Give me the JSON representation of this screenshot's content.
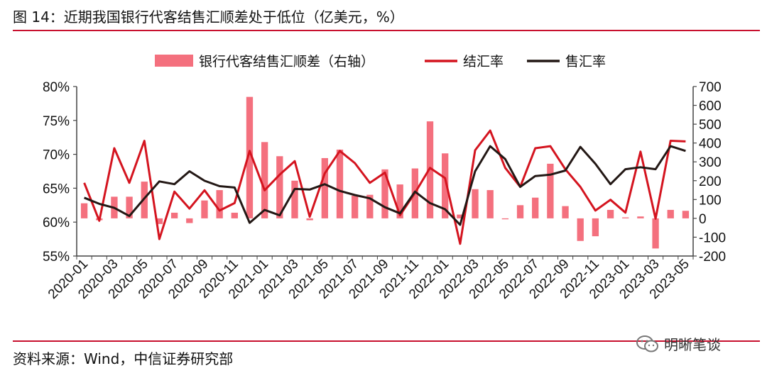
{
  "title": "图 14：近期我国银行代客结售汇顺差处于低位（亿美元，%）",
  "source": "资料来源：Wind，中信证券研究部",
  "watermark": "明晰笔谈",
  "chart_data": {
    "type": "bar+line",
    "categories": [
      "2020-01",
      "2020-02",
      "2020-03",
      "2020-04",
      "2020-05",
      "2020-06",
      "2020-07",
      "2020-08",
      "2020-09",
      "2020-10",
      "2020-11",
      "2020-12",
      "2021-01",
      "2021-02",
      "2021-03",
      "2021-04",
      "2021-05",
      "2021-06",
      "2021-07",
      "2021-08",
      "2021-09",
      "2021-10",
      "2021-11",
      "2021-12",
      "2022-01",
      "2022-02",
      "2022-03",
      "2022-04",
      "2022-05",
      "2022-06",
      "2022-07",
      "2022-08",
      "2022-09",
      "2022-10",
      "2022-11",
      "2022-12",
      "2023-01",
      "2023-02",
      "2023-03",
      "2023-04",
      "2023-05"
    ],
    "x_tick_labels": [
      "2020-01",
      "2020-03",
      "2020-05",
      "2020-07",
      "2020-09",
      "2020-11",
      "2021-01",
      "2021-03",
      "2021-05",
      "2021-07",
      "2021-09",
      "2021-11",
      "2022-01",
      "2022-03",
      "2022-05",
      "2022-07",
      "2022-09",
      "2022-11",
      "2023-01",
      "2023-03",
      "2023-05"
    ],
    "series": [
      {
        "name": "银行代客结售汇顺差（右轴）",
        "kind": "bar",
        "axis": "right",
        "color": "#f4707e",
        "values": [
          80,
          -10,
          115,
          115,
          195,
          -30,
          30,
          -25,
          95,
          150,
          30,
          645,
          405,
          330,
          200,
          -10,
          320,
          365,
          120,
          125,
          260,
          180,
          265,
          515,
          345,
          20,
          155,
          150,
          -5,
          70,
          110,
          290,
          65,
          -120,
          -95,
          45,
          5,
          10,
          -160,
          45,
          40
        ]
      },
      {
        "name": "结汇率",
        "kind": "line",
        "axis": "left",
        "color": "#d4141f",
        "values": [
          65.8,
          60.2,
          70.9,
          65.8,
          72.0,
          57.5,
          64.5,
          62.0,
          64.7,
          61.7,
          62.8,
          70.5,
          64.7,
          67.0,
          69.0,
          60.8,
          67.2,
          70.5,
          68.7,
          65.8,
          67.3,
          61.0,
          64.3,
          68.0,
          66.5,
          56.8,
          70.6,
          73.5,
          68.0,
          65.2,
          70.9,
          71.2,
          67.8,
          65.2,
          61.7,
          63.3,
          61.4,
          70.4,
          60.5,
          72.0,
          71.9
        ]
      },
      {
        "name": "售汇率",
        "kind": "line",
        "axis": "left",
        "color": "#231815",
        "values": [
          63.6,
          62.7,
          62.1,
          60.9,
          63.5,
          66.0,
          65.6,
          67.5,
          66.1,
          65.3,
          65.1,
          59.9,
          61.8,
          61.0,
          64.9,
          64.8,
          65.6,
          64.6,
          64.0,
          63.5,
          62.2,
          61.3,
          64.5,
          62.8,
          61.9,
          59.6,
          67.5,
          71.2,
          69.3,
          65.2,
          66.8,
          67.0,
          67.6,
          71.1,
          68.6,
          65.6,
          67.8,
          68.1,
          67.8,
          71.2,
          70.5
        ]
      }
    ],
    "left_axis": {
      "ticks": [
        "55%",
        "60%",
        "65%",
        "70%",
        "75%",
        "80%"
      ],
      "min": 55,
      "max": 80
    },
    "right_axis": {
      "ticks": [
        "-200",
        "-100",
        "0",
        "100",
        "200",
        "300",
        "400",
        "500",
        "600",
        "700"
      ],
      "min": -200,
      "max": 700
    },
    "legend_position": "top",
    "grid": false
  }
}
